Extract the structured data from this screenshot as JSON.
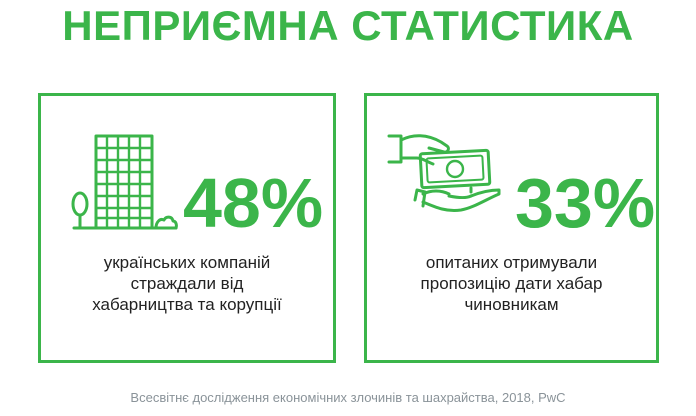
{
  "title": "НЕПРИЄМНА СТАТИСТИКА",
  "colors": {
    "accent": "#3bb54a",
    "text": "#222222",
    "muted": "#8a9399"
  },
  "cards": [
    {
      "icon": "office-building-icon",
      "value": "48%",
      "lines": [
        "українських компаній",
        "страждали від",
        "хабарництва та корупції"
      ]
    },
    {
      "icon": "bribe-money-hands-icon",
      "value": "33%",
      "lines": [
        "опитаних отримували",
        "пропозицію дати хабар",
        "чиновникам"
      ]
    }
  ],
  "source": "Всесвітнє дослідження економічних злочинів та шахрайства, 2018, PwC"
}
